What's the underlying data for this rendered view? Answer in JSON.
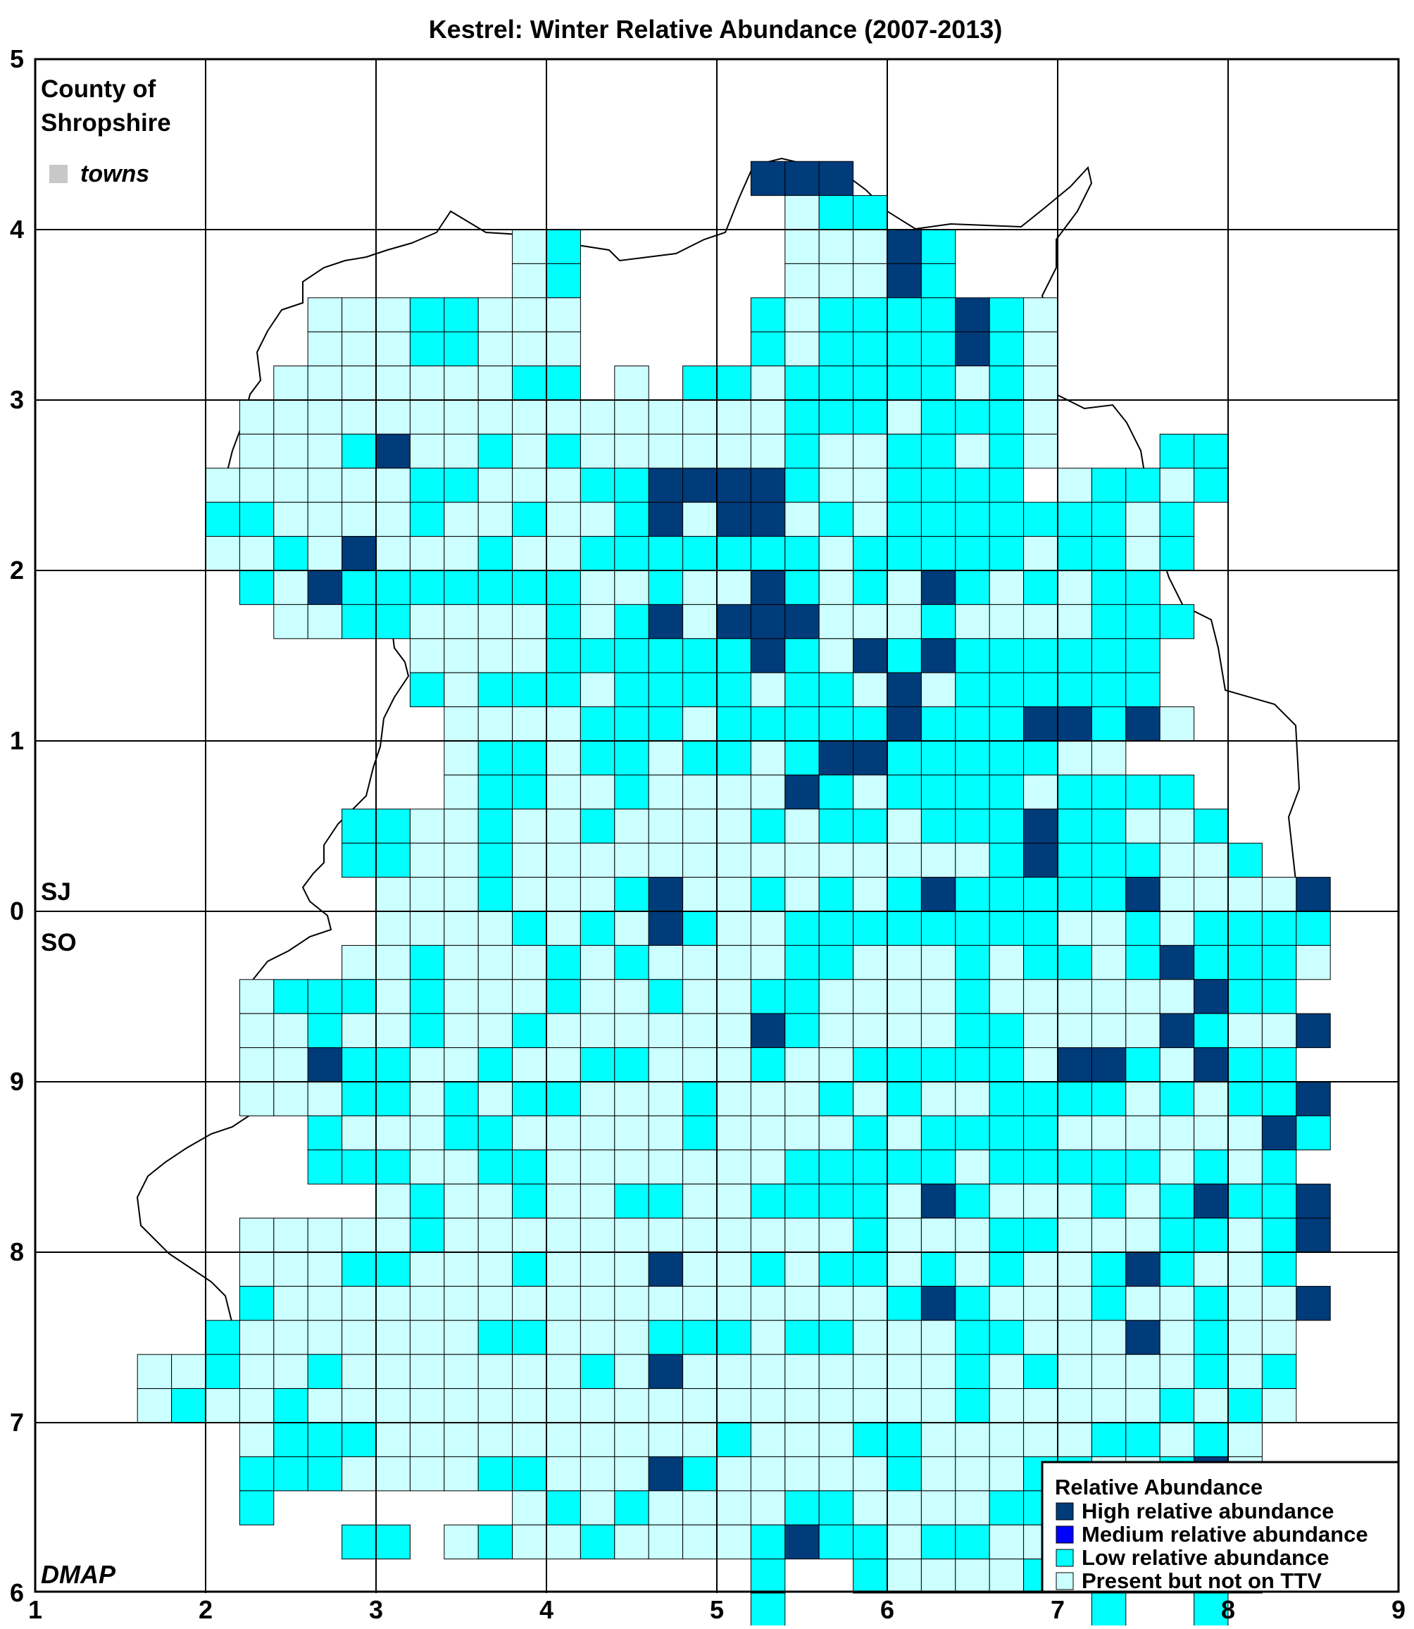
{
  "map": {
    "title": "Kestrel: Winter Relative Abundance (2007-2013)",
    "county_line1": "County of",
    "county_line2": "Shropshire",
    "towns_label": "towns",
    "grid_sq_north": "SJ",
    "grid_sq_south": "SO",
    "credit": "DMAP",
    "x_ticks": [
      "1",
      "2",
      "3",
      "4",
      "5",
      "6",
      "7",
      "8",
      "9"
    ],
    "y_ticks": [
      "5",
      "4",
      "3",
      "2",
      "1",
      "0",
      "9",
      "8",
      "7",
      "6"
    ]
  },
  "legend": {
    "title": "Relative Abundance",
    "items": [
      {
        "label": "High relative abundance",
        "color": "#003b7a"
      },
      {
        "label": "Medium relative abundance",
        "color": "#0000ff"
      },
      {
        "label": "Low relative abundance",
        "color": "#00ffff"
      },
      {
        "label": "Present but not on TTV",
        "color": "#ccffff"
      }
    ]
  },
  "colors": {
    "high": "#003b7a",
    "medium": "#0000ff",
    "low": "#00ffff",
    "present": "#ccffff",
    "towns": "#c8c8c8"
  },
  "tetrads": {
    "grid_origin_easting": 1.6,
    "grid_origin_northing": 4.4,
    "cell_km": 2,
    "codes": [
      "..................HHH......................H...",
      "...................PLL....................L....",
      "...........PL......PPPHL..............H........",
      "...........PL......PPPHL..............H........",
      ".....PPPLLPPP.....LPLLLLHLP.....................",
      ".....PPPLLPPP.....LPLLLLHLP.....................",
      "....PPPPPPPLL.P.LLPLLLLLPLP.....................",
      "...PPPPPPPPPPPPPPPPLLLPLLLP.....................",
      "...PPPLHPPLPLPPPPPPLPPLLPLP...LL...............",
      "..PPPPPPLLPPPLLHHHHLPPLLLL.PLLPL...............",
      "..LLPPPPLPPLPPLHPHHPLPLLLLLLLPL................",
      "..PPLPHPPPLPPLLLLLLLPLLLLLPLLPL................",
      "...LPHLLLLLLLPPLPPHLPLPHLPLPLL.................",
      "....PPLLPPPPLPLHPHHHPPPLPPPPLLL................",
      "........PPPPLLLLLLHLPHLHLLLLLL.................",
      "........LPLLLPLLLLPLLPHPLLLLLL.................",
      ".........PPPPLLLPLLLLLHLLLHHLHP................",
      ".........PLLPLLPLLPLHHLLLLLPP..................",
      ".........PLLPPLPPPPHLPLLLLPLLLL................",
      "......LLPPLPPLPPPPLPLLPLLLHLLPPL...............",
      "......LLPPLPPPPPPPPPPPPPPLHLLLPPL...............",
      ".......PPPLPPPLHPPLPLPLHLLLLLHPPPPH..............",
      ".......PPPPLPLPHLPPLLLLLLLLPPLPLLLL..............",
      "......PPLPPPLPLPPPPLLPPPLPLLPLHLLLP..............",
      "...PLLLPLPPPLPPLPPLLPPPPLPPPPPPHLL...............",
      "...PPLPPLPPLPPPPPPHLPPPPLLPPPPHLPPH..............",
      "...PPHLLPPLPPLLPPPLPPLLLLLPHHLPHLL...............",
      "...PPPLLPLPLLPPPLPPPLPLPPLLLLPLPLLH..............",
      ".....LPPPLLPPPPPLPPPPLPLLLLPPPPPPHL..............",
      ".....LLLPPLLPPPPPPPLLLLLPLLLLLPLPL...............",
      ".......PLPPLPPLLPPLLLLPHLPPPLPLHLLH..............",
      "...PPPPPLPPPPPPPPPPPPLPPPLLPPPLLPLH..............",
      "...PPPLLPPPLPPPHPPLPLLPLPLPPLHLPPL...............",
      "...LPPPPPPPPPPPPPPPPPPLHLPPPLPPLPPH..............",
      "..LPPPPPPPLLPPPLLLPLLPPPLLPPPHPLPP...............",
      "PPLPPLPPPPPPPLPHPPPPPPPPLPLPPPPLPL...............",
      "PLPPLPPPPPPPPPPPPPPPPPPPLPPPPPLPLP...............",
      "...PLLLPPPPPPPPPPLPPPLLPPPPPLLPLP................",
      "...LLLPPPPLLPPPHLPPPPPLPPPLLPPLHP................",
      "...L.......PLPLPPPPLLPPPPLLLHHHPHPLP.............",
      "......LL.PLPPLPPPPLHLLPLLPPPPLHPL................",
      "..................L..LPPPPLPPPPLL................",
      "..................L.........L..L.................",
      "..................L.....LLLLP..................."
    ]
  }
}
